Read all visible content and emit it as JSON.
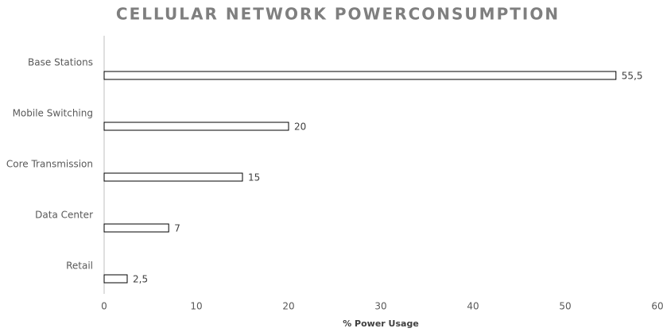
{
  "chart_data": {
    "type": "barh",
    "title": "CELLULAR NETWORK POWERCONSUMPTION",
    "x_label": "% Power Usage",
    "categories": [
      "Base Stations",
      "Mobile Switching",
      "Core Transmission",
      "Data Center",
      "Retail"
    ],
    "values": [
      55.5,
      20,
      15,
      7,
      2.5
    ],
    "value_labels": [
      "55,5",
      "20",
      "15",
      "7",
      "2,5"
    ],
    "color": "#ffffff",
    "xlim": [
      0,
      60
    ],
    "xticks": [
      0,
      10,
      20,
      30,
      40,
      50,
      60
    ],
    "grid": false
  }
}
